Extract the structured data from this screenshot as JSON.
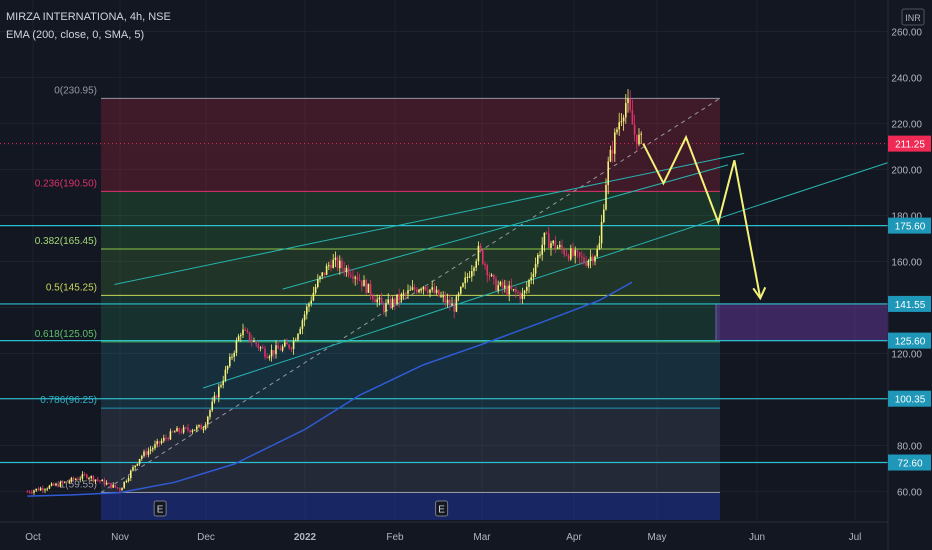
{
  "header": {
    "symbol_line": "MIRZA INTERNATIONA, 4h, NSE",
    "indicator_line": "EMA (200, close, 0, SMA, 5)"
  },
  "currency": "INR",
  "colors": {
    "background": "#131722",
    "up": "#f5f277",
    "down": "#e0316b",
    "ema": "#2f5bd6",
    "channel": "#26b5b0",
    "projection": "#f5f277",
    "level": "#2bc0cf",
    "last_price_bg": "#ef2a55"
  },
  "chart_data": {
    "type": "candlestick",
    "title": "MIRZA INTERNATIONA, 4h, NSE",
    "xlabel": "",
    "ylabel": "",
    "y_axis_ticks": [
      "260.00",
      "240.00",
      "220.00",
      "200.00",
      "180.00",
      "160.00",
      "140.00",
      "120.00",
      "100.00",
      "80.00",
      "60.00"
    ],
    "x_axis_ticks": [
      "Oct",
      "Nov",
      "Dec",
      "2022",
      "Feb",
      "Mar",
      "Apr",
      "May",
      "Jun",
      "Jul"
    ],
    "fib_levels": [
      {
        "label": "0(230.95)",
        "value": 230.95
      },
      {
        "label": "0.236(190.50)",
        "value": 190.5
      },
      {
        "label": "0.382(165.45)",
        "value": 165.45
      },
      {
        "label": "0.5(145.25)",
        "value": 145.25
      },
      {
        "label": "0.618(125.05)",
        "value": 125.05
      },
      {
        "label": "0.786(96.25)",
        "value": 96.25
      },
      {
        "label": "1(59.55)",
        "value": 59.55
      }
    ],
    "price_labels": [
      {
        "label": "211.25",
        "value": 211.25,
        "role": "last"
      },
      {
        "label": "175.60",
        "value": 175.6
      },
      {
        "label": "141.55",
        "value": 141.55
      },
      {
        "label": "125.60",
        "value": 125.6
      },
      {
        "label": "100.35",
        "value": 100.35
      },
      {
        "label": "72.60",
        "value": 72.6
      }
    ],
    "events": [
      "E",
      "E"
    ],
    "series": [
      {
        "name": "EMA (200, close, 0, SMA, 5)",
        "type": "line",
        "points": [
          [
            "Sep-25",
            58
          ],
          [
            "Oct-15",
            58.5
          ],
          [
            "Nov-01",
            59.5
          ],
          [
            "Nov-20",
            64
          ],
          [
            "Dec-10",
            72
          ],
          [
            "Jan-01",
            87
          ],
          [
            "Jan-20",
            102
          ],
          [
            "Feb-10",
            115
          ],
          [
            "Mar-01",
            124
          ],
          [
            "Mar-20",
            133
          ],
          [
            "Apr-10",
            143
          ],
          [
            "Apr-22",
            151
          ]
        ]
      },
      {
        "name": "price",
        "type": "line",
        "points": [
          [
            "Sep-25",
            60
          ],
          [
            "Oct-10",
            63
          ],
          [
            "Oct-20",
            67
          ],
          [
            "Nov-01",
            61
          ],
          [
            "Nov-08",
            75
          ],
          [
            "Nov-20",
            86
          ],
          [
            "Nov-30",
            88
          ],
          [
            "Dec-08",
            115
          ],
          [
            "Dec-12",
            130
          ],
          [
            "Dec-20",
            120
          ],
          [
            "Dec-28",
            124
          ],
          [
            "Jan-05",
            150
          ],
          [
            "Jan-10",
            160
          ],
          [
            "Jan-18",
            155
          ],
          [
            "Jan-28",
            140
          ],
          [
            "Feb-10",
            150
          ],
          [
            "Feb-20",
            140
          ],
          [
            "Feb-28",
            165
          ],
          [
            "Mar-05",
            150
          ],
          [
            "Mar-15",
            145
          ],
          [
            "Mar-22",
            170
          ],
          [
            "Mar-28",
            165
          ],
          [
            "Apr-05",
            160
          ],
          [
            "Apr-10",
            165
          ],
          [
            "Apr-13",
            200
          ],
          [
            "Apr-17",
            220
          ],
          [
            "Apr-20",
            230
          ],
          [
            "Apr-23",
            215
          ],
          [
            "Apr-26",
            211.25
          ]
        ]
      }
    ],
    "projection_points": [
      [
        "Apr-26",
        211.25
      ],
      [
        "May-03",
        194
      ],
      [
        "May-10",
        214
      ],
      [
        "May-20",
        177
      ],
      [
        "May-25",
        204
      ],
      [
        "Jun-02",
        144
      ]
    ]
  }
}
